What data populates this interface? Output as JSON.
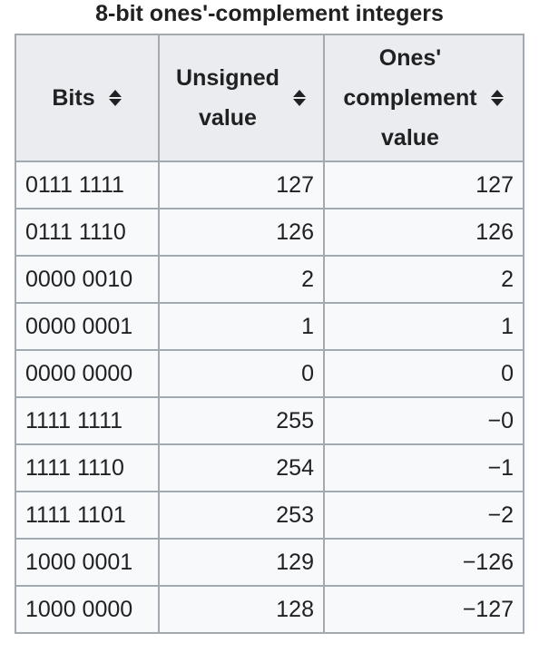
{
  "caption": "8-bit ones'-complement integers",
  "headers": {
    "bits": "Bits",
    "unsigned_line1": "Unsigned",
    "unsigned_line2": "value",
    "ones_line1": "Ones'",
    "ones_line2": "complement",
    "ones_line3": "value"
  },
  "icons": {
    "sort": "sort-arrows-icon"
  },
  "rows": [
    {
      "bits": "0111 1111",
      "unsigned": "127",
      "ones": "127"
    },
    {
      "bits": "0111 1110",
      "unsigned": "126",
      "ones": "126"
    },
    {
      "bits": "0000 0010",
      "unsigned": "2",
      "ones": "2"
    },
    {
      "bits": "0000 0001",
      "unsigned": "1",
      "ones": "1"
    },
    {
      "bits": "0000 0000",
      "unsigned": "0",
      "ones": "0"
    },
    {
      "bits": "1111 1111",
      "unsigned": "255",
      "ones": "−0"
    },
    {
      "bits": "1111 1110",
      "unsigned": "254",
      "ones": "−1"
    },
    {
      "bits": "1111 1101",
      "unsigned": "253",
      "ones": "−2"
    },
    {
      "bits": "1000 0001",
      "unsigned": "129",
      "ones": "−126"
    },
    {
      "bits": "1000 0000",
      "unsigned": "128",
      "ones": "−127"
    }
  ]
}
